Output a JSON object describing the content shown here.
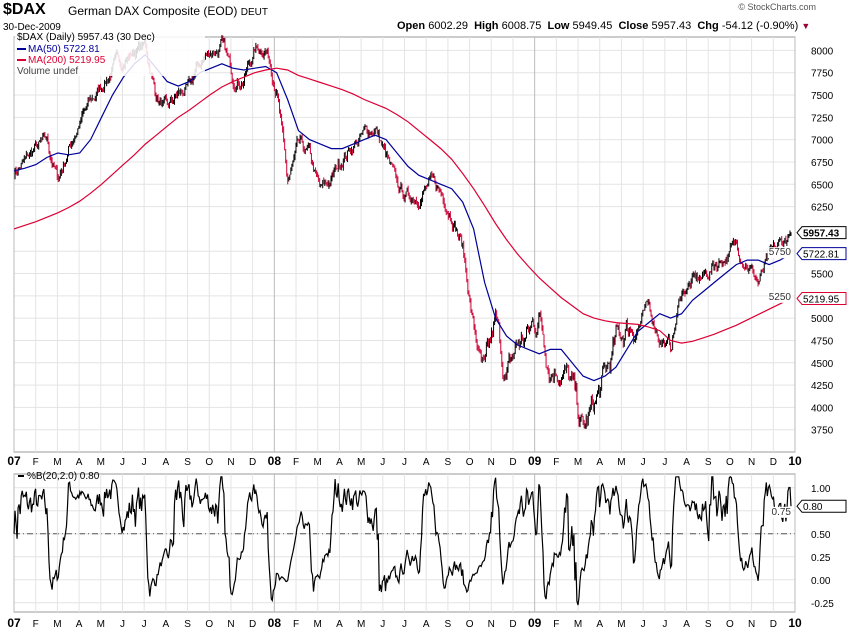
{
  "header": {
    "symbol": "$DAX",
    "name": "German DAX Composite (EOD)",
    "exchange": "DEUT",
    "date": "30-Dec-2009",
    "brand": "© StockCharts.com",
    "open_label": "Open",
    "open": "6002.29",
    "high_label": "High",
    "high": "6008.75",
    "low_label": "Low",
    "low": "5949.45",
    "close_label": "Close",
    "close": "5957.43",
    "chg_label": "Chg",
    "chg": "-54.12 (-0.90%)"
  },
  "legend": {
    "price": "$DAX (Daily) 5957.43 (30 Dec)",
    "ma50": "MA(50) 5722.81",
    "ma200": "MA(200) 5219.95",
    "volume": "Volume undef"
  },
  "colors": {
    "price": "#000000",
    "down": "#cc0033",
    "ma50": "#000099",
    "ma200": "#dd0033",
    "grid": "#e4e4e4"
  },
  "chart_data": [
    {
      "type": "line",
      "title": "$DAX (Daily)",
      "ylim": [
        3500,
        8150
      ],
      "yticks": [
        3750,
        4000,
        4250,
        4500,
        4750,
        5000,
        5250,
        5500,
        5750,
        6250,
        6500,
        6750,
        7000,
        7250,
        7500,
        7750,
        8000
      ],
      "xticks": [
        "07",
        "F",
        "M",
        "A",
        "M",
        "J",
        "J",
        "A",
        "S",
        "O",
        "N",
        "D",
        "08",
        "F",
        "M",
        "A",
        "M",
        "J",
        "J",
        "A",
        "S",
        "O",
        "N",
        "D",
        "09",
        "F",
        "M",
        "A",
        "M",
        "J",
        "J",
        "A",
        "S",
        "O",
        "N",
        "D",
        "10"
      ],
      "x_desc": "semi-monthly points Jan 2007 – Dec 2009",
      "series": [
        {
          "name": "$DAX",
          "values": [
            6650,
            6750,
            6900,
            6950,
            6550,
            6900,
            7200,
            7400,
            7600,
            7800,
            7900,
            8000,
            8050,
            7500,
            7300,
            7500,
            7550,
            7850,
            8000,
            8050,
            7700,
            7700,
            8000,
            8050,
            7600,
            6500,
            6900,
            6800,
            6400,
            6550,
            6800,
            6950,
            7050,
            7150,
            6800,
            6450,
            6350,
            6400,
            6500,
            6400,
            6200,
            5800,
            4900,
            4300,
            4900,
            4300,
            4700,
            4800,
            5050,
            4500,
            4500,
            4200,
            3700,
            4000,
            4300,
            4700,
            4900,
            4950,
            5100,
            4800,
            4650,
            5300,
            5400,
            5450,
            5600,
            5700,
            5800,
            5650,
            5400,
            5650,
            5800,
            5957
          ]
        },
        {
          "name": "MA(50)",
          "values": [
            6650,
            6680,
            6720,
            6800,
            6850,
            6830,
            6850,
            7000,
            7250,
            7500,
            7700,
            7850,
            7950,
            7800,
            7650,
            7600,
            7650,
            7750,
            7800,
            7850,
            7800,
            7780,
            7800,
            7820,
            7750,
            7450,
            7100,
            7000,
            6950,
            6900,
            6900,
            6950,
            7000,
            7050,
            7000,
            6850,
            6700,
            6600,
            6550,
            6500,
            6450,
            6300,
            6000,
            5400,
            5000,
            4800,
            4700,
            4650,
            4600,
            4650,
            4650,
            4500,
            4350,
            4300,
            4350,
            4450,
            4650,
            4850,
            4950,
            5050,
            5000,
            5050,
            5200,
            5300,
            5400,
            5500,
            5600,
            5650,
            5650,
            5600,
            5650,
            5723
          ]
        },
        {
          "name": "MA(200)",
          "values": [
            6000,
            6040,
            6080,
            6130,
            6180,
            6240,
            6310,
            6400,
            6500,
            6610,
            6720,
            6830,
            6950,
            7050,
            7150,
            7250,
            7330,
            7420,
            7510,
            7590,
            7650,
            7700,
            7750,
            7780,
            7800,
            7780,
            7720,
            7680,
            7640,
            7600,
            7560,
            7510,
            7450,
            7400,
            7350,
            7280,
            7200,
            7100,
            7000,
            6900,
            6780,
            6620,
            6450,
            6260,
            6060,
            5880,
            5720,
            5580,
            5450,
            5340,
            5230,
            5140,
            5050,
            5000,
            4970,
            4950,
            4940,
            4930,
            4900,
            4860,
            4750,
            4720,
            4740,
            4780,
            4820,
            4870,
            4920,
            4980,
            5040,
            5100,
            5160,
            5220
          ]
        }
      ]
    },
    {
      "type": "line",
      "title": "%B(20,2.0)",
      "legend": "%B(20,2.0) 0.80",
      "last": "0.80",
      "ylim": [
        -0.35,
        1.15
      ],
      "yticks": [
        "1.00",
        "0.75",
        "0.50",
        "0.25",
        "0.00",
        "-0.25"
      ],
      "reference_line": 0.5
    }
  ]
}
